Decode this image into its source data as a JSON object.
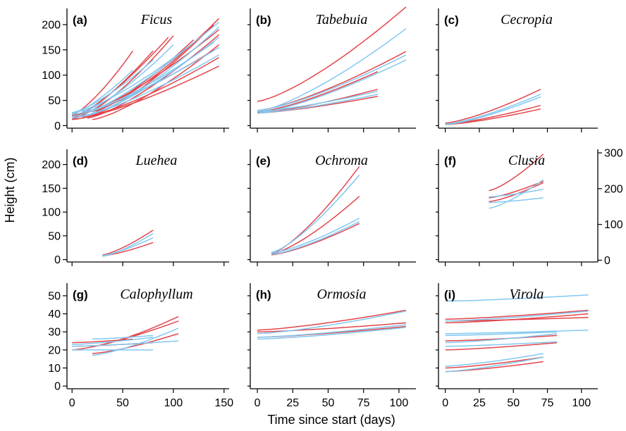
{
  "figure": {
    "xlabel": "Time since start (days)",
    "ylabel": "Height (cm)"
  },
  "colors": {
    "red": "#e2454b",
    "blue": "#82c8f0"
  },
  "chart_data": [
    {
      "type": "line",
      "letter": "(a)",
      "title": "Ficus",
      "xlim": [
        -5,
        155
      ],
      "ylim": [
        -5,
        232
      ],
      "xticks": [
        0,
        50,
        100,
        150
      ],
      "yticks": [
        0,
        50,
        100,
        150,
        200
      ],
      "series": [
        {
          "color": "red",
          "x": [
            0,
            40
          ],
          "y": [
            13,
            57
          ]
        },
        {
          "color": "red",
          "x": [
            0,
            60
          ],
          "y": [
            22,
            148
          ]
        },
        {
          "color": "red",
          "x": [
            0,
            80
          ],
          "y": [
            15,
            148
          ]
        },
        {
          "color": "red",
          "x": [
            0,
            95
          ],
          "y": [
            18,
            175
          ]
        },
        {
          "color": "red",
          "x": [
            10,
            100
          ],
          "y": [
            22,
            178
          ]
        },
        {
          "color": "red",
          "x": [
            10,
            120
          ],
          "y": [
            18,
            170
          ]
        },
        {
          "color": "red",
          "x": [
            20,
            140
          ],
          "y": [
            22,
            200
          ]
        },
        {
          "color": "red",
          "x": [
            20,
            145
          ],
          "y": [
            28,
            212
          ]
        },
        {
          "color": "red",
          "x": [
            15,
            145
          ],
          "y": [
            15,
            180
          ]
        },
        {
          "color": "red",
          "x": [
            20,
            145
          ],
          "y": [
            12,
            160
          ]
        },
        {
          "color": "red",
          "x": [
            10,
            145
          ],
          "y": [
            17,
            135
          ]
        },
        {
          "color": "red",
          "x": [
            0,
            145
          ],
          "y": [
            12,
            118
          ]
        },
        {
          "color": "red",
          "x": [
            5,
            145
          ],
          "y": [
            22,
            190
          ]
        },
        {
          "color": "red",
          "x": [
            0,
            140
          ],
          "y": [
            20,
            150
          ]
        },
        {
          "color": "blue",
          "x": [
            0,
            60
          ],
          "y": [
            24,
            110
          ]
        },
        {
          "color": "blue",
          "x": [
            0,
            80
          ],
          "y": [
            26,
            130
          ]
        },
        {
          "color": "blue",
          "x": [
            10,
            100
          ],
          "y": [
            28,
            160
          ]
        },
        {
          "color": "blue",
          "x": [
            5,
            120
          ],
          "y": [
            20,
            165
          ]
        },
        {
          "color": "blue",
          "x": [
            0,
            145
          ],
          "y": [
            25,
            205
          ]
        },
        {
          "color": "blue",
          "x": [
            10,
            145
          ],
          "y": [
            18,
            175
          ]
        },
        {
          "color": "blue",
          "x": [
            0,
            145
          ],
          "y": [
            22,
            155
          ]
        },
        {
          "color": "blue",
          "x": [
            0,
            145
          ],
          "y": [
            15,
            140
          ]
        },
        {
          "color": "blue",
          "x": [
            20,
            145
          ],
          "y": [
            25,
            195
          ]
        },
        {
          "color": "blue",
          "x": [
            0,
            140
          ],
          "y": [
            18,
            165
          ]
        }
      ]
    },
    {
      "type": "line",
      "letter": "(b)",
      "title": "Tabebuia",
      "xlim": [
        -5,
        112
      ],
      "ylim": [
        -5,
        232
      ],
      "xticks": [
        0,
        25,
        50,
        75,
        100
      ],
      "yticks": [],
      "series": [
        {
          "color": "red",
          "x": [
            0,
            105
          ],
          "y": [
            48,
            235
          ]
        },
        {
          "color": "red",
          "x": [
            0,
            105
          ],
          "y": [
            30,
            147
          ]
        },
        {
          "color": "red",
          "x": [
            0,
            85
          ],
          "y": [
            27,
            107
          ]
        },
        {
          "color": "red",
          "x": [
            0,
            85
          ],
          "y": [
            25,
            72
          ]
        },
        {
          "color": "red",
          "x": [
            0,
            85
          ],
          "y": [
            25,
            58
          ]
        },
        {
          "color": "blue",
          "x": [
            0,
            105
          ],
          "y": [
            28,
            192
          ]
        },
        {
          "color": "blue",
          "x": [
            0,
            105
          ],
          "y": [
            25,
            130
          ]
        },
        {
          "color": "blue",
          "x": [
            0,
            105
          ],
          "y": [
            30,
            140
          ]
        },
        {
          "color": "blue",
          "x": [
            0,
            85
          ],
          "y": [
            28,
            68
          ]
        },
        {
          "color": "blue",
          "x": [
            0,
            85
          ],
          "y": [
            25,
            62
          ]
        }
      ]
    },
    {
      "type": "line",
      "letter": "(c)",
      "title": "Cecropia",
      "xlim": [
        -5,
        112
      ],
      "ylim": [
        -5,
        232
      ],
      "xticks": [
        0,
        25,
        50,
        75,
        100
      ],
      "yticks": [],
      "series": [
        {
          "color": "red",
          "x": [
            0,
            70
          ],
          "y": [
            5,
            72
          ]
        },
        {
          "color": "red",
          "x": [
            0,
            70
          ],
          "y": [
            3,
            40
          ]
        },
        {
          "color": "red",
          "x": [
            0,
            70
          ],
          "y": [
            2,
            33
          ]
        },
        {
          "color": "blue",
          "x": [
            0,
            70
          ],
          "y": [
            3,
            62
          ]
        },
        {
          "color": "blue",
          "x": [
            0,
            70
          ],
          "y": [
            2,
            57
          ]
        }
      ]
    },
    {
      "type": "line",
      "letter": "(d)",
      "title": "Luehea",
      "xlim": [
        -5,
        155
      ],
      "ylim": [
        -5,
        232
      ],
      "xticks": [
        0,
        50,
        100,
        150
      ],
      "yticks": [
        0,
        50,
        100,
        150,
        200
      ],
      "series": [
        {
          "color": "red",
          "x": [
            30,
            80
          ],
          "y": [
            10,
            62
          ]
        },
        {
          "color": "red",
          "x": [
            30,
            80
          ],
          "y": [
            8,
            36
          ]
        },
        {
          "color": "blue",
          "x": [
            30,
            80
          ],
          "y": [
            7,
            55
          ]
        },
        {
          "color": "blue",
          "x": [
            30,
            80
          ],
          "y": [
            9,
            46
          ]
        }
      ]
    },
    {
      "type": "line",
      "letter": "(e)",
      "title": "Ochroma",
      "xlim": [
        -5,
        112
      ],
      "ylim": [
        -5,
        232
      ],
      "xticks": [
        0,
        25,
        50,
        75,
        100
      ],
      "yticks": [],
      "series": [
        {
          "color": "red",
          "x": [
            10,
            72
          ],
          "y": [
            13,
            196
          ]
        },
        {
          "color": "red",
          "x": [
            10,
            72
          ],
          "y": [
            12,
            133
          ]
        },
        {
          "color": "red",
          "x": [
            10,
            72
          ],
          "y": [
            10,
            76
          ]
        },
        {
          "color": "blue",
          "x": [
            10,
            72
          ],
          "y": [
            15,
            178
          ]
        },
        {
          "color": "blue",
          "x": [
            10,
            72
          ],
          "y": [
            14,
            87
          ]
        },
        {
          "color": "blue",
          "x": [
            10,
            72
          ],
          "y": [
            11,
            80
          ]
        }
      ]
    },
    {
      "type": "line",
      "letter": "(f)",
      "title": "Clusia",
      "xlim": [
        -5,
        112
      ],
      "ylim": [
        -5,
        232
      ],
      "xticks": [
        0,
        25,
        50,
        75,
        100
      ],
      "yticks": [],
      "right_axis": {
        "ylim": [
          -5,
          310
        ],
        "ticks": [
          0,
          100,
          200,
          300
        ]
      },
      "series": [
        {
          "color": "red",
          "x": [
            32,
            72
          ],
          "y": [
            145,
            222
          ]
        },
        {
          "color": "red",
          "x": [
            32,
            72
          ],
          "y": [
            130,
            165
          ]
        },
        {
          "color": "red",
          "x": [
            32,
            72
          ],
          "y": [
            122,
            162
          ]
        },
        {
          "color": "blue",
          "x": [
            32,
            72
          ],
          "y": [
            108,
            168
          ]
        },
        {
          "color": "blue",
          "x": [
            32,
            72
          ],
          "y": [
            120,
            130
          ]
        },
        {
          "color": "blue",
          "x": [
            32,
            72
          ],
          "y": [
            132,
            148
          ]
        }
      ]
    },
    {
      "type": "line",
      "letter": "(g)",
      "title": "Calophyllum",
      "xlim": [
        -5,
        155
      ],
      "ylim": [
        -1.5,
        57
      ],
      "xticks": [
        0,
        50,
        100,
        150
      ],
      "yticks": [
        0,
        10,
        20,
        30,
        40,
        50
      ],
      "series": [
        {
          "color": "red",
          "x": [
            0,
            60
          ],
          "y": [
            24,
            26
          ]
        },
        {
          "color": "red",
          "x": [
            0,
            80
          ],
          "y": [
            22,
            24
          ]
        },
        {
          "color": "red",
          "x": [
            20,
            105
          ],
          "y": [
            22,
            38.5
          ]
        },
        {
          "color": "red",
          "x": [
            0,
            105
          ],
          "y": [
            20,
            36
          ]
        },
        {
          "color": "red",
          "x": [
            20,
            105
          ],
          "y": [
            18,
            29
          ]
        },
        {
          "color": "blue",
          "x": [
            0,
            80
          ],
          "y": [
            20,
            20
          ]
        },
        {
          "color": "blue",
          "x": [
            20,
            105
          ],
          "y": [
            17,
            32
          ]
        },
        {
          "color": "blue",
          "x": [
            0,
            105
          ],
          "y": [
            22,
            25
          ]
        },
        {
          "color": "blue",
          "x": [
            0,
            80
          ],
          "y": [
            23,
            27
          ]
        },
        {
          "color": "blue",
          "x": [
            20,
            80
          ],
          "y": [
            26,
            28
          ]
        }
      ]
    },
    {
      "type": "line",
      "letter": "(h)",
      "title": "Ormosia",
      "xlim": [
        -5,
        112
      ],
      "ylim": [
        -1.5,
        57
      ],
      "xticks": [
        0,
        25,
        50,
        75,
        100
      ],
      "yticks": [],
      "series": [
        {
          "color": "red",
          "x": [
            0,
            105
          ],
          "y": [
            31,
            42
          ]
        },
        {
          "color": "red",
          "x": [
            0,
            105
          ],
          "y": [
            30,
            35
          ]
        },
        {
          "color": "red",
          "x": [
            0,
            105
          ],
          "y": [
            27,
            33
          ]
        },
        {
          "color": "blue",
          "x": [
            0,
            105
          ],
          "y": [
            29,
            41.5
          ]
        },
        {
          "color": "blue",
          "x": [
            0,
            105
          ],
          "y": [
            27,
            34
          ]
        },
        {
          "color": "blue",
          "x": [
            0,
            105
          ],
          "y": [
            26,
            32.5
          ]
        }
      ]
    },
    {
      "type": "line",
      "letter": "(i)",
      "title": "Virola",
      "xlim": [
        -5,
        112
      ],
      "ylim": [
        -1.5,
        57
      ],
      "xticks": [
        0,
        25,
        50,
        75,
        100
      ],
      "yticks": [],
      "series": [
        {
          "color": "blue",
          "x": [
            0,
            105
          ],
          "y": [
            47,
            50.5
          ]
        },
        {
          "color": "red",
          "x": [
            0,
            105
          ],
          "y": [
            37,
            42
          ]
        },
        {
          "color": "red",
          "x": [
            0,
            105
          ],
          "y": [
            36,
            38
          ]
        },
        {
          "color": "red",
          "x": [
            0,
            105
          ],
          "y": [
            35,
            40
          ]
        },
        {
          "color": "blue",
          "x": [
            0,
            105
          ],
          "y": [
            36,
            41.5
          ]
        },
        {
          "color": "blue",
          "x": [
            0,
            105
          ],
          "y": [
            29,
            31
          ]
        },
        {
          "color": "blue",
          "x": [
            0,
            82
          ],
          "y": [
            28,
            30
          ]
        },
        {
          "color": "red",
          "x": [
            0,
            82
          ],
          "y": [
            25,
            28
          ]
        },
        {
          "color": "blue",
          "x": [
            0,
            82
          ],
          "y": [
            24,
            29
          ]
        },
        {
          "color": "red",
          "x": [
            0,
            82
          ],
          "y": [
            20,
            24
          ]
        },
        {
          "color": "blue",
          "x": [
            0,
            82
          ],
          "y": [
            22,
            24.5
          ]
        },
        {
          "color": "red",
          "x": [
            0,
            72
          ],
          "y": [
            10,
            16
          ]
        },
        {
          "color": "red",
          "x": [
            0,
            72
          ],
          "y": [
            8,
            13.5
          ]
        },
        {
          "color": "blue",
          "x": [
            0,
            72
          ],
          "y": [
            11,
            18
          ]
        },
        {
          "color": "blue",
          "x": [
            0,
            72
          ],
          "y": [
            8,
            16
          ]
        }
      ]
    }
  ]
}
